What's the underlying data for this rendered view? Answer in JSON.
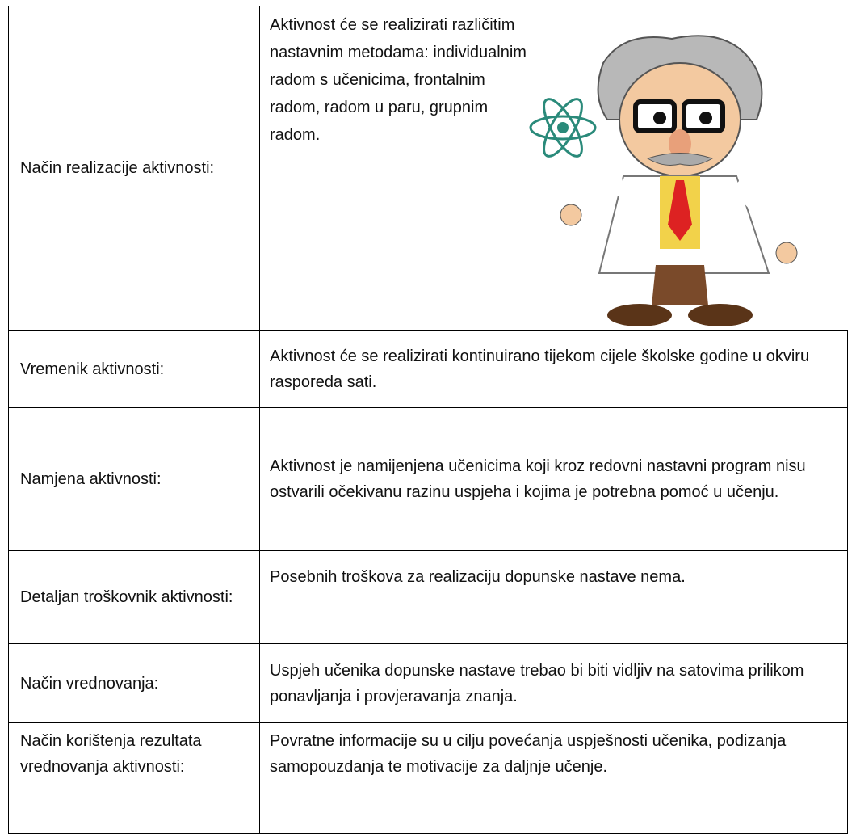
{
  "table": {
    "rows": [
      [
        "Način realizacije aktivnosti:",
        "Aktivnost će se realizirati različitim nastavnim metodama: individualnim radom s učenicima, frontalnim radom, radom u paru, grupnim radom."
      ],
      [
        "Vremenik aktivnosti:",
        "Aktivnost će se realizirati kontinuirano tijekom cijele školske godine u okviru rasporeda sati."
      ],
      [
        "Namjena aktivnosti:",
        "Aktivnost je namijenjena učenicima koji kroz redovni nastavni program nisu ostvarili očekivanu razinu uspjeha i kojima je potrebna pomoć u učenju."
      ],
      [
        "Detaljan troškovnik aktivnosti:",
        "Posebnih troškova za realizaciju dopunske nastave nema."
      ],
      [
        "Način vrednovanja:",
        "Uspjeh učenika dopunske nastave trebao bi biti vidljiv na satovima prilikom ponavljanja i provjeravanja znanja."
      ],
      [
        "Način korištenja rezultata vrednovanja aktivnosti:",
        "Povratne informacije su u cilju povećanja uspješnosti učenika, podizanja samopouzdanja te motivacije za daljnje učenje."
      ]
    ]
  }
}
